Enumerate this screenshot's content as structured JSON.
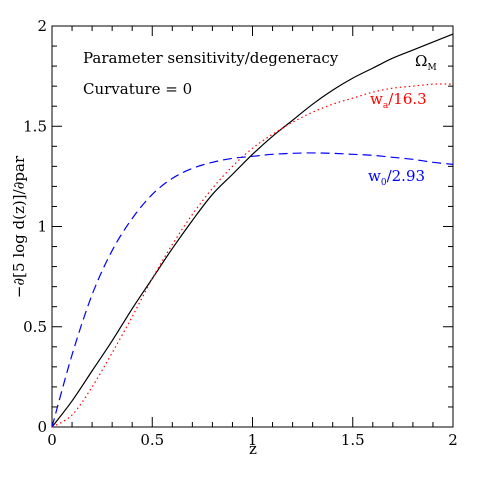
{
  "chart_data": {
    "type": "line",
    "title": "",
    "xlabel": "z",
    "ylabel": "−∂[5 log d(z)]/∂par",
    "xlim": [
      0,
      2
    ],
    "ylim": [
      0,
      2
    ],
    "grid": false,
    "x_ticks": [
      0,
      0.5,
      1,
      1.5,
      2
    ],
    "x_tick_labels": [
      "0",
      "0.5",
      "1",
      "1.5",
      "2"
    ],
    "y_ticks": [
      0,
      0.5,
      1,
      1.5,
      2
    ],
    "y_tick_labels": [
      "0",
      "0.5",
      "1",
      "1.5",
      "2"
    ],
    "annotations": [
      {
        "text": "Parameter sensitivity/degeneracy"
      },
      {
        "text": "Curvature = 0"
      }
    ],
    "series": [
      {
        "label_main": "Ω",
        "label_sub": "M",
        "label_rest": "",
        "color": "#000000",
        "style": "solid",
        "x": [
          0,
          0.1,
          0.2,
          0.3,
          0.4,
          0.5,
          0.6,
          0.7,
          0.8,
          0.9,
          1.0,
          1.1,
          1.2,
          1.3,
          1.4,
          1.5,
          1.6,
          1.7,
          1.8,
          1.9,
          2.0
        ],
        "y": [
          0,
          0.13,
          0.28,
          0.43,
          0.59,
          0.74,
          0.89,
          1.03,
          1.16,
          1.26,
          1.36,
          1.45,
          1.53,
          1.61,
          1.68,
          1.74,
          1.79,
          1.84,
          1.88,
          1.92,
          1.96
        ]
      },
      {
        "label_main": "w",
        "label_sub": "a",
        "label_rest": "/16.3",
        "color": "#ff0000",
        "style": "dotted",
        "x": [
          0,
          0.1,
          0.2,
          0.3,
          0.4,
          0.5,
          0.6,
          0.7,
          0.8,
          0.9,
          1.0,
          1.1,
          1.2,
          1.3,
          1.4,
          1.5,
          1.6,
          1.7,
          1.8,
          1.9,
          2.0
        ],
        "y": [
          0,
          0.06,
          0.2,
          0.37,
          0.55,
          0.74,
          0.91,
          1.06,
          1.19,
          1.3,
          1.39,
          1.46,
          1.52,
          1.57,
          1.61,
          1.64,
          1.67,
          1.69,
          1.7,
          1.71,
          1.71
        ]
      },
      {
        "label_main": "w",
        "label_sub": "0",
        "label_rest": "/2.93",
        "color": "#0000ff",
        "style": "dashed",
        "x": [
          0,
          0.1,
          0.2,
          0.3,
          0.4,
          0.5,
          0.6,
          0.7,
          0.8,
          0.9,
          1.0,
          1.1,
          1.2,
          1.3,
          1.4,
          1.5,
          1.6,
          1.7,
          1.8,
          1.9,
          2.0
        ],
        "y": [
          0,
          0.36,
          0.66,
          0.88,
          1.04,
          1.16,
          1.24,
          1.29,
          1.32,
          1.34,
          1.35,
          1.36,
          1.365,
          1.367,
          1.365,
          1.36,
          1.355,
          1.345,
          1.335,
          1.32,
          1.31
        ]
      }
    ]
  }
}
